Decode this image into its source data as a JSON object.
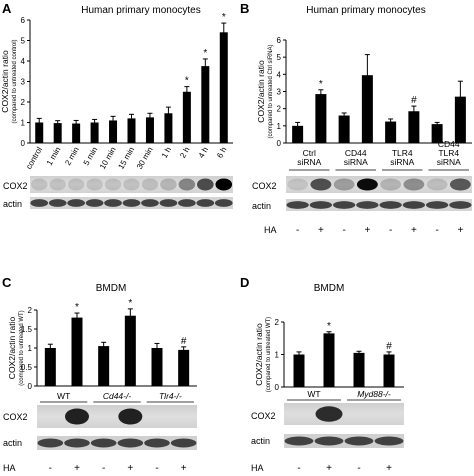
{
  "figure": {
    "panels": [
      {
        "letter": "A",
        "title": "Human primary monocytes"
      },
      {
        "letter": "B",
        "title": "Human primary monocytes"
      },
      {
        "letter": "C",
        "title": "BMDM"
      },
      {
        "letter": "D",
        "title": "BMDM"
      }
    ],
    "blot_labels": {
      "cox2": "COX2",
      "actin": "actin",
      "ha": "HA"
    },
    "ha_signs": {
      "minus": "-",
      "plus": "+"
    }
  },
  "chart_data": [
    {
      "panel": "A",
      "type": "bar",
      "title": "Human primary monocytes",
      "ylabel": "COX2/actin ratio",
      "ylabel_sub": "(compared to untreated control)",
      "ylim": [
        0,
        6
      ],
      "yticks": [
        0,
        1,
        2,
        3,
        4,
        5,
        6
      ],
      "categories": [
        "control",
        "1 min",
        "2 min",
        "5 min",
        "10 min",
        "15 min",
        "30 min",
        "1 h",
        "2 h",
        "4 h",
        "6 h"
      ],
      "values": [
        1.0,
        0.97,
        0.95,
        1.0,
        1.1,
        1.2,
        1.25,
        1.45,
        2.5,
        3.75,
        5.4
      ],
      "errors": [
        0.2,
        0.12,
        0.15,
        0.15,
        0.2,
        0.2,
        0.2,
        0.3,
        0.25,
        0.35,
        0.45
      ],
      "annotations": [
        "",
        "",
        "",
        "",
        "",
        "",
        "",
        "",
        "*",
        "*",
        "*"
      ],
      "grid": false
    },
    {
      "panel": "B",
      "type": "bar",
      "title": "Human primary monocytes",
      "ylabel": "COX2/actin ratio",
      "ylabel_sub": "(compared to untreated Ctrl siRNA)",
      "ylim": [
        0,
        6
      ],
      "yticks": [
        0,
        1,
        2,
        3,
        4,
        5,
        6
      ],
      "groups": [
        "Ctrl siRNA",
        "CD44 siRNA",
        "TLR4 siRNA",
        "CD44 TLR4 siRNA"
      ],
      "ha": [
        "-",
        "+",
        "-",
        "+",
        "-",
        "+",
        "-",
        "+"
      ],
      "values": [
        1.0,
        2.85,
        1.6,
        3.95,
        1.25,
        1.85,
        1.1,
        2.7
      ],
      "errors": [
        0.2,
        0.25,
        0.15,
        1.2,
        0.15,
        0.3,
        0.1,
        0.9
      ],
      "annotations": [
        "",
        "*",
        "",
        "",
        "",
        "#",
        "",
        ""
      ],
      "grid": false
    },
    {
      "panel": "C",
      "type": "bar",
      "title": "BMDM",
      "ylabel": "COX2/actin ratio",
      "ylabel_sub": "(compared to untreated WT)",
      "ylim": [
        0,
        2
      ],
      "yticks": [
        0,
        0.5,
        1,
        1.5,
        2
      ],
      "groups": [
        "WT",
        "Cd44-/-",
        "Tlr4-/-"
      ],
      "ha": [
        "-",
        "+",
        "-",
        "+",
        "-",
        "+"
      ],
      "values": [
        1.0,
        1.8,
        1.05,
        1.85,
        1.0,
        0.95
      ],
      "errors": [
        0.1,
        0.12,
        0.1,
        0.18,
        0.12,
        0.08
      ],
      "annotations": [
        "",
        "*",
        "",
        "*",
        "",
        "#"
      ],
      "grid": false
    },
    {
      "panel": "D",
      "type": "bar",
      "title": "BMDM",
      "ylabel": "COX2/actin ratio",
      "ylabel_sub": "(compared to untreated WT)",
      "ylim": [
        0,
        2
      ],
      "yticks": [
        0,
        1,
        2
      ],
      "groups": [
        "WT",
        "Myd88-/-"
      ],
      "ha": [
        "-",
        "+",
        "-",
        "+"
      ],
      "values": [
        1.0,
        1.65,
        1.05,
        1.0
      ],
      "errors": [
        0.08,
        0.05,
        0.05,
        0.08
      ],
      "annotations": [
        "",
        "*",
        "",
        "#"
      ],
      "grid": false
    }
  ]
}
